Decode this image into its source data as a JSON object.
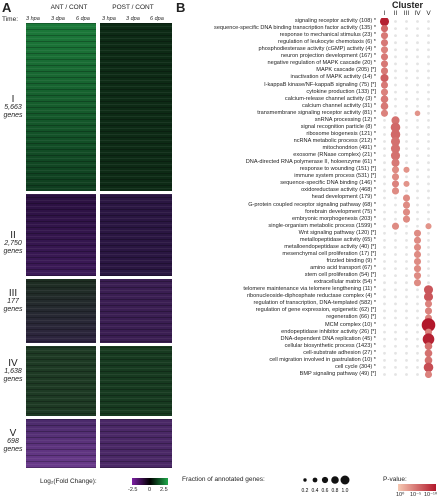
{
  "panelA": {
    "letter": "A",
    "time_label": "Time:",
    "group_headers": [
      "ANT / CONT",
      "POST / CONT"
    ],
    "timepoints": [
      "3 hpa",
      "3 dpa",
      "6 dpa",
      "3 hpa",
      "3 dpa",
      "6 dpa"
    ],
    "clusters": [
      {
        "id": "I",
        "count": "5,663",
        "unit": "genes"
      },
      {
        "id": "II",
        "count": "2,750",
        "unit": "genes"
      },
      {
        "id": "III",
        "count": "177",
        "unit": "genes"
      },
      {
        "id": "IV",
        "count": "1,638",
        "unit": "genes"
      },
      {
        "id": "V",
        "count": "698",
        "unit": "genes"
      }
    ],
    "colorbar": {
      "label": "Log₂(Fold Change):",
      "ticks": [
        "-2.5",
        "0",
        "2.5"
      ],
      "low_color": "#7b1fa2",
      "mid_color": "#000000",
      "high_color": "#1fa84a"
    }
  },
  "panelB": {
    "letter": "B",
    "cluster_title": "Cluster",
    "cluster_ids": [
      "I",
      "II",
      "III",
      "IV",
      "V"
    ],
    "terms": [
      "signaling receptor activity (108) *",
      "sequence-specific DNA binding transcription factor activity (135) *",
      "response to mechanical stimulus (23) *",
      "regulation of leukocyte chemotaxis (6) *",
      "phosphodiesterase activity (cGMP) activity (4) *",
      "neuron projection development (167) *",
      "negative regulation of MAPK cascade (20) *",
      "MAPK cascade (205) [*]",
      "inactivation of MAPK activity (14) *",
      "I-kappaB kinase/NF-kappaB signaling (75) [*]",
      "cytokine production (133) [*]",
      "calcium-release channel activity (3) *",
      "calcium channel activity (31) *",
      "transmembrane signaling receptor activity (81) *",
      "snRNA processing (12) *",
      "signal recognition particle (8) *",
      "ribosome biogenesis (121) *",
      "ncRNA metabolic process (212) *",
      "mitochondrion (491) *",
      "exosome (RNase complex) (21) *",
      "DNA-directed RNA polymerase II, holoenzyme (61) *",
      "response to wounding (151) [*]",
      "immune system process (531) [*]",
      "sequence-specific DNA binding (146) *",
      "oxidoreductase activity (468) *",
      "head development (179) *",
      "G-protein coupled receptor signaling pathway (68) *",
      "forebrain development (75) *",
      "embryonic morphogenesis (203) *",
      "single-organism metabolic process (1599) *",
      "Wnt signaling pathway (120) [*]",
      "metallopeptidase activity (65) *",
      "metalloendopeptidase activity (40) [*]",
      "mesenchymal cell proliferation (17) [*]",
      "frizzled binding (9) *",
      "amino acid transport (67) *",
      "stem cell proliferation (54) [*]",
      "extracellular matrix (54) *",
      "telomere maintenance via telomere lengthening (11) *",
      "ribonucleoside-diphosphate reductase complex (4) *",
      "regulation of transcription, DNA-templated (582) *",
      "regulation of gene expression, epigenetic (62) [*]",
      "regeneration (66) [*]",
      "MCM complex (10) *",
      "endopeptidase inhibitor activity (26) [*]",
      "DNA-dependent DNA replication (45) *",
      "cellular biosynthetic process (1423) *",
      "cell-substrate adhesion (27) *",
      "cell migration involved in gastrulation (10) *",
      "cell cycle (304) *",
      "BMP signaling pathway (49) [*]"
    ],
    "legend": {
      "size_label": "Fraction of annotated genes:",
      "size_ticks": [
        "0.2",
        "0.4",
        "0.6",
        "0.8",
        "1.0"
      ],
      "pval_label": "P-value:",
      "pval_ticks": [
        "10⁰",
        "10⁻⁵",
        "10⁻¹⁰"
      ],
      "pval_low_color": "#f6c9b3",
      "pval_high_color": "#b2182b"
    },
    "dots": [
      [
        0,
        0,
        0.55,
        0.95
      ],
      [
        1,
        0,
        0.35,
        0.55
      ],
      [
        2,
        0,
        0.35,
        0.45
      ],
      [
        3,
        0,
        0.35,
        0.45
      ],
      [
        4,
        0,
        0.35,
        0.4
      ],
      [
        5,
        0,
        0.35,
        0.45
      ],
      [
        6,
        0,
        0.35,
        0.45
      ],
      [
        7,
        0,
        0.35,
        0.45
      ],
      [
        8,
        0,
        0.45,
        0.6
      ],
      [
        9,
        0,
        0.35,
        0.45
      ],
      [
        10,
        0,
        0.35,
        0.4
      ],
      [
        11,
        0,
        0.4,
        0.45
      ],
      [
        12,
        0,
        0.4,
        0.45
      ],
      [
        13,
        0,
        0.35,
        0.4
      ],
      [
        13,
        3,
        0.2,
        0.3
      ],
      [
        14,
        1,
        0.45,
        0.5
      ],
      [
        15,
        1,
        0.6,
        0.55
      ],
      [
        16,
        1,
        0.6,
        0.55
      ],
      [
        17,
        1,
        0.55,
        0.5
      ],
      [
        18,
        1,
        0.55,
        0.5
      ],
      [
        19,
        1,
        0.55,
        0.5
      ],
      [
        20,
        1,
        0.45,
        0.45
      ],
      [
        21,
        1,
        0.35,
        0.35
      ],
      [
        21,
        2,
        0.25,
        0.3
      ],
      [
        22,
        1,
        0.35,
        0.35
      ],
      [
        23,
        1,
        0.35,
        0.4
      ],
      [
        23,
        2,
        0.25,
        0.3
      ],
      [
        24,
        1,
        0.35,
        0.35
      ],
      [
        25,
        2,
        0.35,
        0.35
      ],
      [
        26,
        2,
        0.35,
        0.35
      ],
      [
        27,
        2,
        0.35,
        0.35
      ],
      [
        28,
        2,
        0.35,
        0.35
      ],
      [
        29,
        1,
        0.35,
        0.35
      ],
      [
        29,
        4,
        0.25,
        0.3
      ],
      [
        30,
        3,
        0.35,
        0.35
      ],
      [
        31,
        3,
        0.35,
        0.35
      ],
      [
        32,
        3,
        0.35,
        0.35
      ],
      [
        33,
        3,
        0.35,
        0.35
      ],
      [
        34,
        3,
        0.35,
        0.35
      ],
      [
        35,
        3,
        0.35,
        0.35
      ],
      [
        36,
        3,
        0.35,
        0.35
      ],
      [
        37,
        3,
        0.35,
        0.35
      ],
      [
        38,
        4,
        0.55,
        0.65
      ],
      [
        39,
        4,
        0.55,
        0.65
      ],
      [
        40,
        4,
        0.35,
        0.4
      ],
      [
        41,
        4,
        0.35,
        0.4
      ],
      [
        42,
        4,
        0.35,
        0.4
      ],
      [
        43,
        4,
        1.0,
        1.0
      ],
      [
        44,
        4,
        0.35,
        0.4
      ],
      [
        45,
        4,
        0.8,
        0.95
      ],
      [
        46,
        4,
        0.4,
        0.5
      ],
      [
        47,
        4,
        0.4,
        0.5
      ],
      [
        48,
        4,
        0.4,
        0.5
      ],
      [
        49,
        4,
        0.6,
        0.7
      ],
      [
        50,
        4,
        0.35,
        0.4
      ]
    ]
  }
}
